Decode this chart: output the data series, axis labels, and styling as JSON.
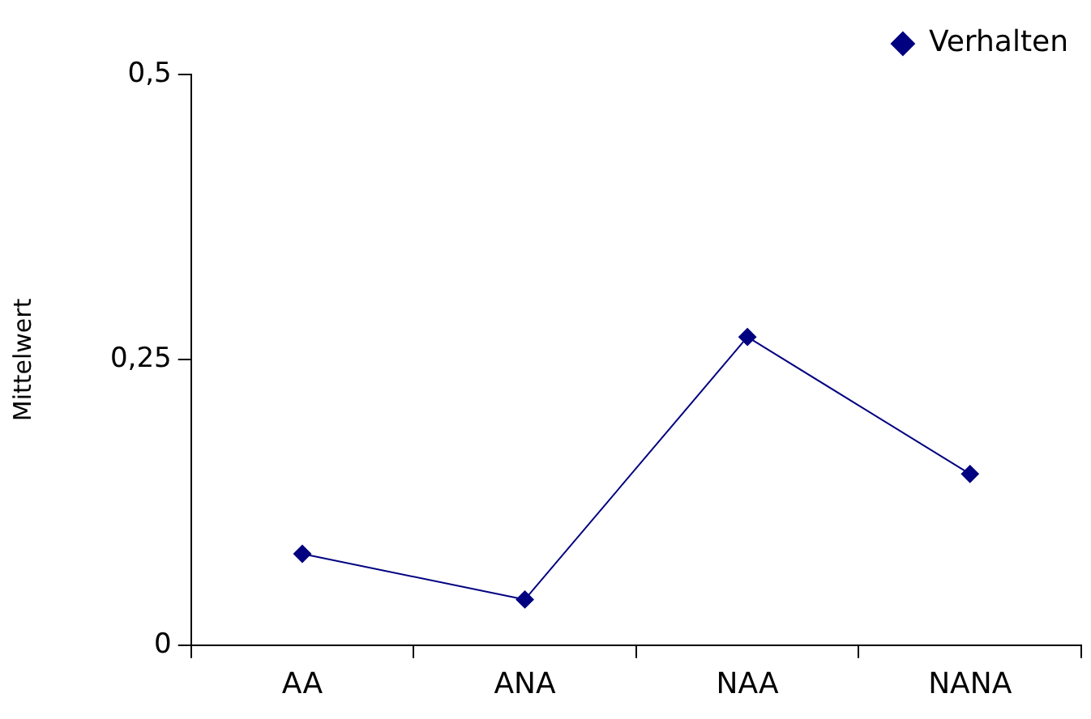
{
  "chart_data": {
    "type": "line",
    "ylabel": "Mittelwert",
    "categories": [
      "AA",
      "ANA",
      "NAA",
      "NANA"
    ],
    "series": [
      {
        "name": "Verhalten",
        "color": "#000080",
        "values": [
          0.08,
          0.04,
          0.27,
          0.15
        ]
      }
    ],
    "ylim": [
      0,
      0.5
    ],
    "yticks": [
      {
        "value": 0,
        "label": "0"
      },
      {
        "value": 0.25,
        "label": "0,25"
      },
      {
        "value": 0.5,
        "label": "0,5"
      }
    ],
    "grid": false,
    "legend": "top right",
    "marker": "diamond",
    "line_style": "solid"
  }
}
